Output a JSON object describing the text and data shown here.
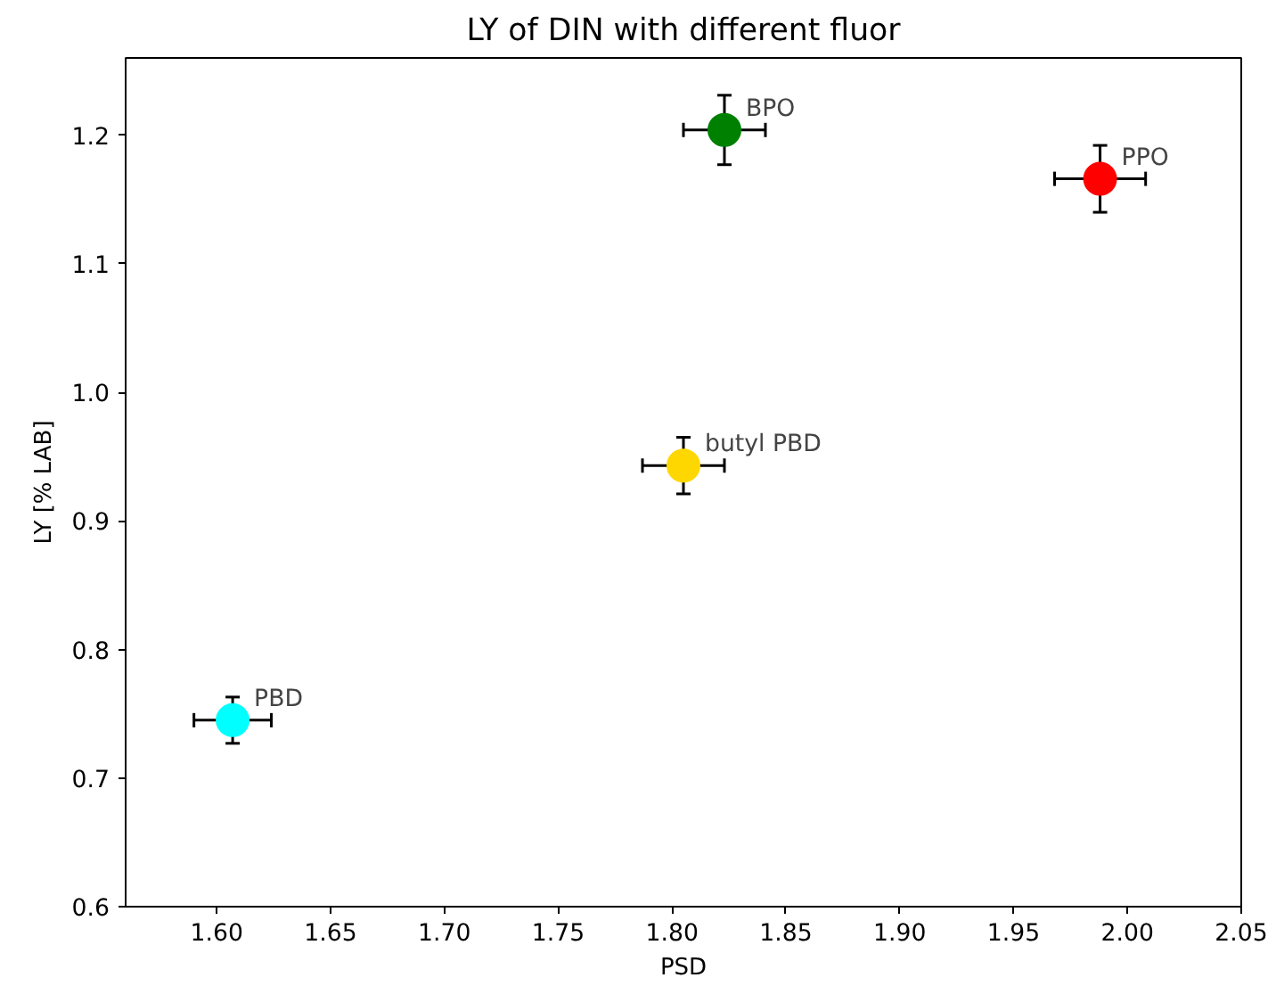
{
  "chart_data": {
    "type": "scatter",
    "title": "LY of DIN with different fluor",
    "xlabel": "PSD",
    "ylabel": "LY [% LAB]",
    "xlim": [
      1.56,
      2.05
    ],
    "ylim": [
      0.6,
      1.26
    ],
    "xticks": [
      {
        "value": 1.6,
        "label": "1.60"
      },
      1.65,
      {
        "value": 1.7,
        "label": "1.70"
      },
      1.75,
      {
        "value": 1.8,
        "label": "1.80"
      },
      1.85,
      {
        "value": 1.9,
        "label": "1.90"
      },
      1.95,
      {
        "value": 2.0,
        "label": "2.00"
      },
      2.05
    ],
    "yticks": [
      0.6,
      0.7,
      0.8,
      0.9,
      {
        "value": 1.0,
        "label": "1.0"
      },
      1.1,
      1.2
    ],
    "x": [
      1.607,
      1.805,
      1.823,
      1.988
    ],
    "values": [
      0.745,
      0.943,
      1.204,
      1.166
    ],
    "colors": [
      "#00ffff",
      "#ffd700",
      "#008000",
      "#ff0000"
    ],
    "errors": [
      0.018,
      0.022,
      0.027,
      0.026
    ],
    "xerrors": [
      0.017,
      0.018,
      0.018,
      0.02
    ],
    "marker": "circle",
    "grid": false,
    "annotations": [
      {
        "text": "PBD",
        "x": 1.607,
        "y": 0.745
      },
      {
        "text": "butyl PBD",
        "x": 1.805,
        "y": 0.943
      },
      {
        "text": "BPO",
        "x": 1.823,
        "y": 1.204
      },
      {
        "text": "PPO",
        "x": 1.988,
        "y": 1.166
      }
    ]
  }
}
